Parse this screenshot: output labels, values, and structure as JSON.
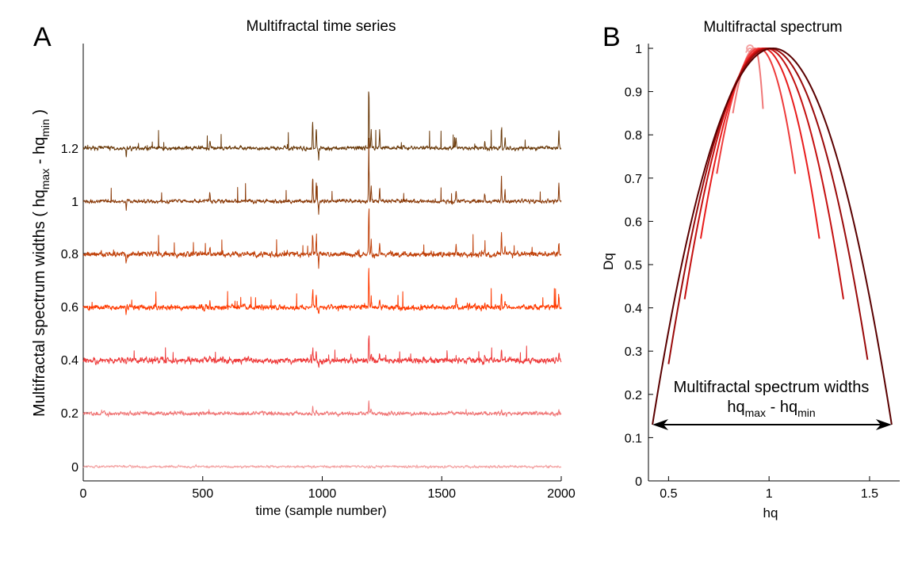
{
  "chart_data": [
    {
      "panel_letter": "A",
      "type": "line",
      "title": "Multifractal time series",
      "xlabel": "time (sample number)",
      "ylabel": {
        "main": "Multifractal spectrum widths ( hq",
        "sub1": "max",
        "mid": " - hq",
        "sub2": "min",
        "end": " )"
      },
      "xlim": [
        0,
        2000
      ],
      "x_ticks": [
        "0",
        "500",
        "1000",
        "1500",
        "2000"
      ],
      "y_ticks": [
        "0",
        "0.2",
        "0.4",
        "0.6",
        "0.8",
        "1",
        "1.2"
      ],
      "series": [
        {
          "offset": 0.0,
          "color": "#f4a3a3",
          "noise": 0.004,
          "spike_scale": 0.0
        },
        {
          "offset": 0.2,
          "color": "#f07878",
          "noise": 0.006,
          "spike_scale": 0.2
        },
        {
          "offset": 0.4,
          "color": "#ee3b3b",
          "noise": 0.009,
          "spike_scale": 0.45
        },
        {
          "offset": 0.6,
          "color": "#ff3a00",
          "noise": 0.008,
          "spike_scale": 0.7
        },
        {
          "offset": 0.8,
          "color": "#c0410a",
          "noise": 0.008,
          "spike_scale": 0.85
        },
        {
          "offset": 1.0,
          "color": "#8a3a08",
          "noise": 0.006,
          "spike_scale": 0.95
        },
        {
          "offset": 1.2,
          "color": "#6a3a0a",
          "noise": 0.006,
          "spike_scale": 1.0
        }
      ],
      "spikes": [
        {
          "t": 960,
          "amp": 0.13
        },
        {
          "t": 975,
          "amp": 0.09
        },
        {
          "t": 985,
          "amp": -0.06
        },
        {
          "t": 1195,
          "amp": 0.28
        },
        {
          "t": 1205,
          "amp": 0.08
        },
        {
          "t": 1240,
          "amp": 0.06
        },
        {
          "t": 1750,
          "amp": 0.1
        },
        {
          "t": 1765,
          "amp": 0.05
        },
        {
          "t": 530,
          "amp": 0.04
        },
        {
          "t": 1560,
          "amp": 0.05
        },
        {
          "t": 1680,
          "amp": 0.04
        },
        {
          "t": 1990,
          "amp": 0.08
        },
        {
          "t": 180,
          "amp": -0.04
        }
      ]
    },
    {
      "panel_letter": "B",
      "type": "line",
      "title": "Multifractal spectrum",
      "xlabel": "hq",
      "ylabel": "Dq",
      "xlim": [
        0.4,
        1.65
      ],
      "ylim": [
        0,
        1
      ],
      "x_ticks": [
        0.5,
        1,
        1.5
      ],
      "x_tick_labels": [
        "0.5",
        "1",
        "1.5"
      ],
      "y_ticks": [
        0,
        0.1,
        0.2,
        0.3,
        0.4,
        0.5,
        0.6,
        0.7,
        0.8,
        0.9,
        1
      ],
      "y_tick_labels": [
        "0",
        "0.1",
        "0.2",
        "0.3",
        "0.4",
        "0.5",
        "0.6",
        "0.7",
        "0.8",
        "0.9",
        "1"
      ],
      "series": [
        {
          "left": 0.885,
          "peak": 0.905,
          "right": 0.93,
          "left_end_dq": 0.99,
          "right_end_dq": 0.99,
          "color": "#f4a3a3",
          "marker": true
        },
        {
          "left": 0.82,
          "peak": 0.93,
          "right": 0.97,
          "left_end_dq": 0.85,
          "right_end_dq": 0.86,
          "color": "#f07878"
        },
        {
          "left": 0.74,
          "peak": 0.95,
          "right": 1.13,
          "left_end_dq": 0.71,
          "right_end_dq": 0.71,
          "color": "#ee3b3b"
        },
        {
          "left": 0.66,
          "peak": 0.97,
          "right": 1.25,
          "left_end_dq": 0.56,
          "right_end_dq": 0.56,
          "color": "#e81c1c"
        },
        {
          "left": 0.58,
          "peak": 0.985,
          "right": 1.37,
          "left_end_dq": 0.42,
          "right_end_dq": 0.42,
          "color": "#c41010"
        },
        {
          "left": 0.5,
          "peak": 1.0,
          "right": 1.49,
          "left_end_dq": 0.27,
          "right_end_dq": 0.28,
          "color": "#9a0a0a"
        },
        {
          "left": 0.42,
          "peak": 1.02,
          "right": 1.61,
          "left_end_dq": 0.13,
          "right_end_dq": 0.13,
          "color": "#5a0000"
        }
      ],
      "annotation": {
        "line1": "Multifractal spectrum widths",
        "hq": "hq",
        "sub1": "max",
        "mid": " - hq",
        "sub2": "min",
        "from_hq": 0.42,
        "to_hq": 1.61,
        "at_dq": 0.13
      }
    }
  ]
}
